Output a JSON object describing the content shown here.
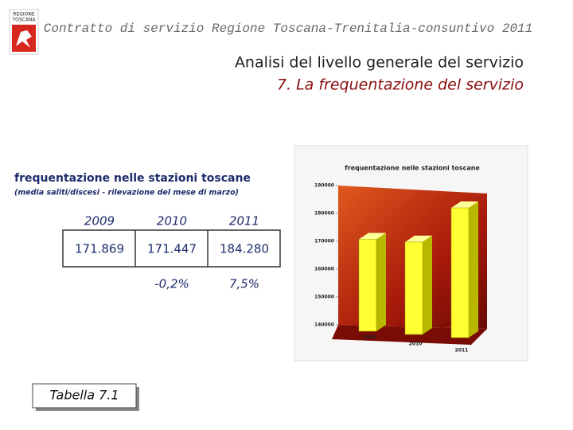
{
  "header": {
    "logo": [
      "REGIONE",
      "TOSCANA"
    ],
    "title": "Contratto di servizio Regione Toscana-Trenitalia-consuntivo 2011"
  },
  "heading": {
    "line1": "Analisi del livello generale del servizio",
    "line2": "7. La frequentazione del servizio"
  },
  "table": {
    "title": "frequentazione nelle stazioni toscane",
    "subtitle": "(media saliti/discesi - rilevazione del mese di marzo)",
    "years": [
      "2009",
      "2010",
      "2011"
    ],
    "values": [
      "171.869",
      "171.447",
      "184.280"
    ],
    "changes": [
      "-0,2%",
      "7,5%"
    ]
  },
  "chart_data": {
    "type": "bar",
    "title": "frequentazione nelle stazioni toscane",
    "categories": [
      "2009",
      "2010",
      "2011"
    ],
    "values": [
      171869,
      171447,
      184280
    ],
    "color": "#ffff33",
    "ylim": [
      140000,
      190000
    ],
    "yticks": [
      140000,
      150000,
      160000,
      170000,
      180000,
      190000
    ]
  },
  "caption": "Tabella 7.1"
}
